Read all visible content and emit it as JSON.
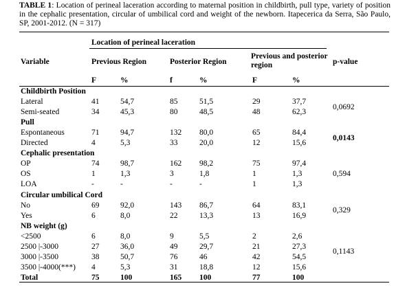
{
  "caption": {
    "label": "TABLE 1",
    "text": ": Location of perineal laceration according to maternal position in childbirth, pull type, variety of position in the cephalic presentation, circular of umbilical cord and weight of the newborn. Itapecerica da Serra, São Paulo, SP, 2001-2012. (N = 317)"
  },
  "table": {
    "group_header": "Location of perineal laceration",
    "columns": [
      "Variable",
      "Previous Region",
      "Posterior Region",
      "Previous and posterior region",
      "p-value"
    ],
    "subheaders": [
      "F",
      "%",
      "f",
      "%",
      "F",
      "%"
    ],
    "groups": [
      {
        "title": "Childbirth Position",
        "p_value": "0,0692",
        "rows": [
          [
            "Lateral",
            "41",
            "54,7",
            "85",
            "51,5",
            "29",
            "37,7"
          ],
          [
            "Semi-seated",
            "34",
            "45,3",
            "80",
            "48,5",
            "48",
            "62,3"
          ]
        ]
      },
      {
        "title": "Pull",
        "p_value": "0,0143",
        "p_value_bold": true,
        "rows": [
          [
            "Espontaneous",
            "71",
            "94,7",
            "132",
            "80,0",
            "65",
            "84,4"
          ],
          [
            "Directed",
            "4",
            "5,3",
            "33",
            "20,0",
            "12",
            "15,6"
          ]
        ]
      },
      {
        "title": "Cephalic presentation",
        "p_value": "0,594",
        "rows": [
          [
            "OP",
            "74",
            "98,7",
            "162",
            "98,2",
            "75",
            "97,4"
          ],
          [
            "OS",
            "1",
            "1,3",
            "3",
            "1,8",
            "1",
            "1,3"
          ],
          [
            "LOA",
            "-",
            "-",
            "-",
            "-",
            "1",
            "1,3"
          ]
        ]
      },
      {
        "title": "Circular umbilical Cord",
        "p_value": "0,329",
        "rows": [
          [
            "No",
            "69",
            "92,0",
            "143",
            "86,7",
            "64",
            "83,1"
          ],
          [
            "Yes",
            "6",
            "8,0",
            "22",
            "13,3",
            "13",
            "16,9"
          ]
        ]
      },
      {
        "title": "NB weight (g)",
        "p_value": "0,1143",
        "rows": [
          [
            "<2500",
            "6",
            "8,0",
            "9",
            "5,5",
            "2",
            "2,6"
          ],
          [
            "2500 |-3000",
            "27",
            "36,0",
            "49",
            "29,7",
            "21",
            "27,3"
          ],
          [
            "3000 |-3500",
            "38",
            "50,7",
            "76",
            "46",
            "42",
            "54,5"
          ],
          [
            "3500 |-4000(***)",
            "4",
            "5,3",
            "31",
            "18,8",
            "12",
            "15,6"
          ]
        ]
      }
    ],
    "total": [
      "Total",
      "75",
      "100",
      "165",
      "100",
      "77",
      "100"
    ]
  }
}
